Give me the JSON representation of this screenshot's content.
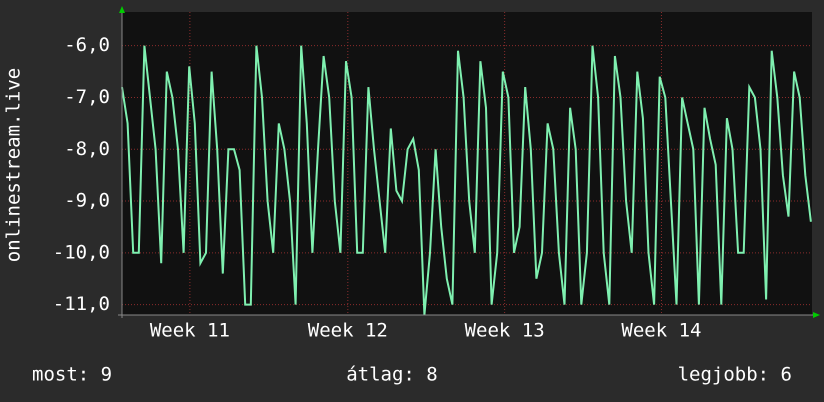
{
  "chart_data": {
    "type": "line",
    "y_label": "onlinestream.live",
    "xlim": [
      0,
      30.8
    ],
    "xticks": [
      {
        "value": 3.03,
        "label": "Week 11"
      },
      {
        "value": 10.08,
        "label": "Week 12"
      },
      {
        "value": 17.08,
        "label": "Week 13"
      },
      {
        "value": 24.08,
        "label": "Week 14"
      }
    ],
    "ylim": [
      -11.2,
      -5.35
    ],
    "yticks": [
      {
        "value": -6,
        "label": "-6,0"
      },
      {
        "value": -7,
        "label": "-7,0"
      },
      {
        "value": -8,
        "label": "-8,0"
      },
      {
        "value": -9,
        "label": "-9,0"
      },
      {
        "value": -10,
        "label": "-10,0"
      },
      {
        "value": -11,
        "label": "-11,0"
      }
    ],
    "grid": true,
    "x": [
      0,
      0.25,
      0.5,
      0.75,
      1,
      1.25,
      1.5,
      1.75,
      2,
      2.25,
      2.5,
      2.75,
      3,
      3.25,
      3.5,
      3.75,
      4,
      4.25,
      4.5,
      4.75,
      5,
      5.25,
      5.5,
      5.75,
      6,
      6.25,
      6.5,
      6.75,
      7,
      7.25,
      7.5,
      7.75,
      8,
      8.25,
      8.5,
      8.75,
      9,
      9.25,
      9.5,
      9.75,
      10,
      10.25,
      10.5,
      10.75,
      11,
      11.25,
      11.5,
      11.75,
      12,
      12.25,
      12.5,
      12.75,
      13,
      13.25,
      13.5,
      13.75,
      14,
      14.25,
      14.5,
      14.75,
      15,
      15.25,
      15.5,
      15.75,
      16,
      16.25,
      16.5,
      16.75,
      17,
      17.25,
      17.5,
      17.75,
      18,
      18.25,
      18.5,
      18.75,
      19,
      19.25,
      19.5,
      19.75,
      20,
      20.25,
      20.5,
      20.75,
      21,
      21.25,
      21.5,
      21.75,
      22,
      22.25,
      22.5,
      22.75,
      23,
      23.25,
      23.5,
      23.75,
      24,
      24.25,
      24.5,
      24.75,
      25,
      25.25,
      25.5,
      25.75,
      26,
      26.25,
      26.5,
      26.75,
      27,
      27.25,
      27.5,
      27.75,
      28,
      28.25,
      28.5,
      28.75,
      29,
      29.25,
      29.5,
      29.75,
      30,
      30.25,
      30.5,
      30.75
    ],
    "series": [
      {
        "color": "#7ff0b0",
        "values": [
          -6.8,
          -7.5,
          -10,
          -10,
          -6,
          -7,
          -8,
          -10.2,
          -6.5,
          -7,
          -8,
          -10,
          -6.4,
          -7.5,
          -10.2,
          -10,
          -6.5,
          -8,
          -10.4,
          -8,
          -8,
          -8.4,
          -11,
          -11,
          -6,
          -7,
          -9,
          -10,
          -7.5,
          -8,
          -9,
          -11,
          -6,
          -7.5,
          -10,
          -8,
          -6.2,
          -7,
          -9,
          -10,
          -6.3,
          -7,
          -10,
          -10,
          -6.8,
          -8,
          -9,
          -10,
          -7.6,
          -8.8,
          -9,
          -8,
          -7.8,
          -8.4,
          -11.2,
          -10,
          -8,
          -9.5,
          -10.5,
          -11,
          -6.1,
          -7,
          -9,
          -10,
          -6.3,
          -7.2,
          -11,
          -10,
          -6.5,
          -7,
          -10,
          -9.5,
          -6.8,
          -8,
          -10.5,
          -10,
          -7.5,
          -8,
          -10,
          -11,
          -7.2,
          -8,
          -11,
          -10,
          -6,
          -7,
          -10,
          -11,
          -6.2,
          -7,
          -9,
          -10,
          -6.5,
          -7.4,
          -10,
          -11,
          -6.6,
          -7,
          -9,
          -11,
          -7,
          -7.5,
          -8,
          -11,
          -7.2,
          -7.8,
          -8.3,
          -11,
          -7.4,
          -8,
          -10,
          -10,
          -6.8,
          -7,
          -8,
          -10.9,
          -6.1,
          -7,
          -8.5,
          -9.3,
          -6.5,
          -7,
          -8.5,
          -9.4
        ]
      }
    ],
    "footer": [
      "most: 9",
      "átlag: 8",
      "legjobb: 6"
    ]
  }
}
